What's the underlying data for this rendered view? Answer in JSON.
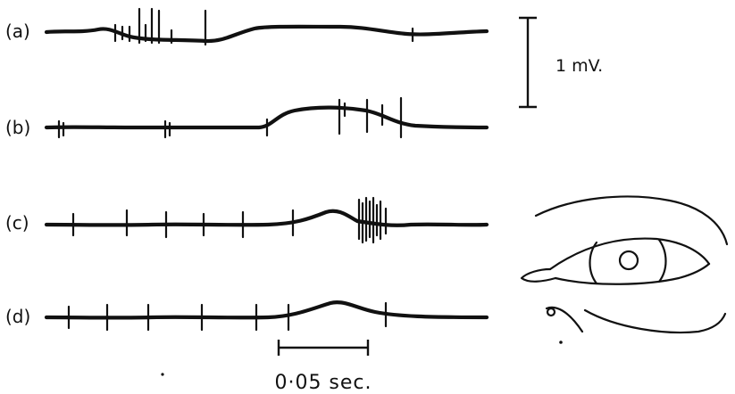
{
  "traces": [
    {
      "id": "a",
      "label": "(a)"
    },
    {
      "id": "b",
      "label": "(b)"
    },
    {
      "id": "c",
      "label": "(c)"
    },
    {
      "id": "d",
      "label": "(d)"
    }
  ],
  "voltage_scale": {
    "label": "1 mV."
  },
  "time_scale": {
    "label": "0·05 sec."
  }
}
